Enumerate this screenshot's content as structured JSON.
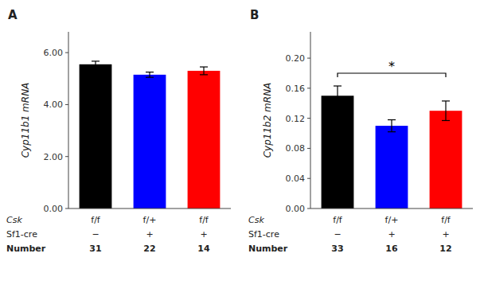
{
  "chart_data": [
    {
      "type": "bar",
      "title": "A",
      "y_label": "Cyp11b1 mRNA",
      "values": [
        5.55,
        5.15,
        5.3
      ],
      "errors": [
        0.12,
        0.1,
        0.15
      ],
      "colors": [
        "#000000",
        "#0000ff",
        "#ff0000"
      ],
      "ylim": [
        0,
        6.8
      ],
      "yticks": [
        {
          "value": 0,
          "label": "0.00"
        },
        {
          "value": 2,
          "label": "2.00"
        },
        {
          "value": 4,
          "label": "4.00"
        },
        {
          "value": 6,
          "label": "6.00"
        }
      ],
      "grid": false,
      "category_rows": [
        {
          "name": "Csk",
          "labels": [
            "f/f",
            "f/+",
            "f/f"
          ]
        },
        {
          "name": "Sf1-cre",
          "labels": [
            "−",
            "+",
            "+"
          ]
        },
        {
          "name": "Number",
          "labels": [
            "31",
            "22",
            "14"
          ]
        }
      ]
    },
    {
      "type": "bar",
      "title": "B",
      "y_label": "Cyp11b2 mRNA",
      "values": [
        0.15,
        0.11,
        0.13
      ],
      "errors": [
        0.013,
        0.008,
        0.013
      ],
      "colors": [
        "#000000",
        "#0000ff",
        "#ff0000"
      ],
      "ylim": [
        0,
        0.235
      ],
      "yticks": [
        {
          "value": 0,
          "label": "0.00"
        },
        0.04,
        0.08,
        0.12,
        0.16,
        {
          "value": 0.2,
          "label": "0.20"
        }
      ],
      "grid": false,
      "category_rows": [
        {
          "name": "Csk",
          "labels": [
            "f/f",
            "f/+",
            "f/f"
          ]
        },
        {
          "name": "Sf1-cre",
          "labels": [
            "−",
            "+",
            "+"
          ]
        },
        {
          "name": "Number",
          "labels": [
            "33",
            "16",
            "12"
          ]
        }
      ],
      "annotation": {
        "text": "*",
        "from": 0,
        "to": 2
      }
    }
  ]
}
